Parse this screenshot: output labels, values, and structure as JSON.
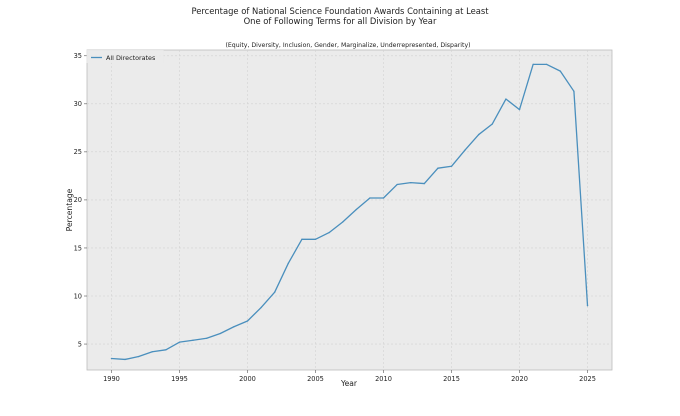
{
  "chart_data": {
    "type": "line",
    "title_line1": "Percentage of National Science Foundation Awards Containing at Least",
    "title_line2": "One of Following Terms for all Division by Year",
    "subtitle": "(Equity, Diversity, Inclusion, Gender, Marginalize, Underrepresented, Disparity)",
    "xlabel": "Year",
    "ylabel": "Percentage",
    "xlim": [
      1988.2,
      2026.8
    ],
    "ylim": [
      2.3,
      35.6
    ],
    "xticks": [
      1990,
      1995,
      2000,
      2005,
      2010,
      2015,
      2020,
      2025
    ],
    "yticks": [
      5,
      10,
      15,
      20,
      25,
      30,
      35
    ],
    "grid": true,
    "legend_position": "top-left",
    "colors": {
      "line": "#4a8fbd",
      "plot_background": "#ebebeb",
      "grid": "#d2d2d2",
      "axes_edge": "#bcbcbc"
    },
    "series": [
      {
        "name": "All Directorates",
        "x": [
          1990,
          1991,
          1992,
          1993,
          1994,
          1995,
          1996,
          1997,
          1998,
          1999,
          2000,
          2001,
          2002,
          2003,
          2004,
          2005,
          2006,
          2007,
          2008,
          2009,
          2010,
          2011,
          2012,
          2013,
          2014,
          2015,
          2016,
          2017,
          2018,
          2019,
          2020,
          2021,
          2022,
          2023,
          2024,
          2025
        ],
        "values": [
          3.5,
          3.4,
          3.7,
          4.2,
          4.4,
          5.2,
          5.4,
          5.6,
          6.1,
          6.8,
          7.4,
          8.8,
          10.4,
          13.4,
          15.9,
          15.9,
          16.6,
          17.7,
          19.0,
          20.2,
          20.2,
          21.6,
          21.8,
          21.7,
          23.3,
          23.5,
          25.2,
          26.8,
          27.9,
          30.5,
          29.4,
          34.1,
          34.1,
          33.4,
          31.3,
          9.0
        ]
      }
    ]
  }
}
